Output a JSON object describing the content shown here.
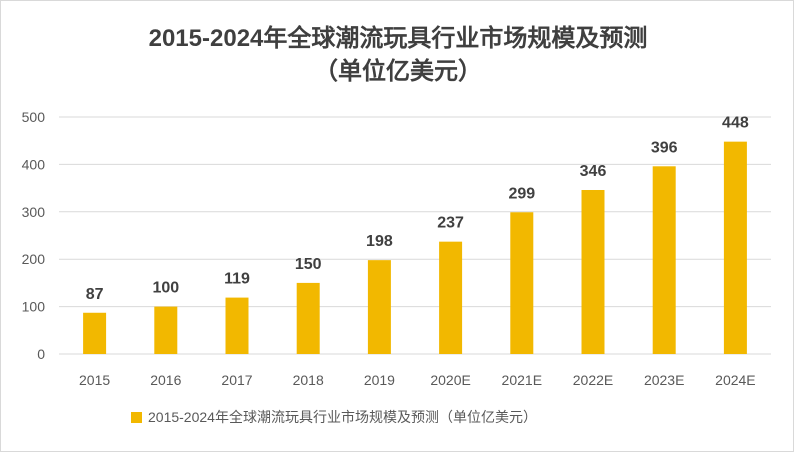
{
  "chart_data": {
    "type": "bar",
    "title": "2015-2024年全球潮流玩具行业市场规模及预测",
    "subtitle": "（单位亿美元）",
    "categories": [
      "2015",
      "2016",
      "2017",
      "2018",
      "2019",
      "2020E",
      "2021E",
      "2022E",
      "2023E",
      "2024E"
    ],
    "series": [
      {
        "name": "2015-2024年全球潮流玩具行业市场规模及预测（单位亿美元）",
        "values": [
          87,
          100,
          119,
          150,
          198,
          237,
          299,
          346,
          396,
          448
        ]
      }
    ],
    "ylim": [
      0,
      500
    ],
    "yticks": [
      "0",
      "100",
      "200",
      "300",
      "400",
      "500"
    ],
    "grid": true,
    "legend_position": "bottom",
    "colors": {
      "bar": "#f2b800",
      "grid": "#d9d9d9",
      "title": "#3f3f3f"
    }
  }
}
